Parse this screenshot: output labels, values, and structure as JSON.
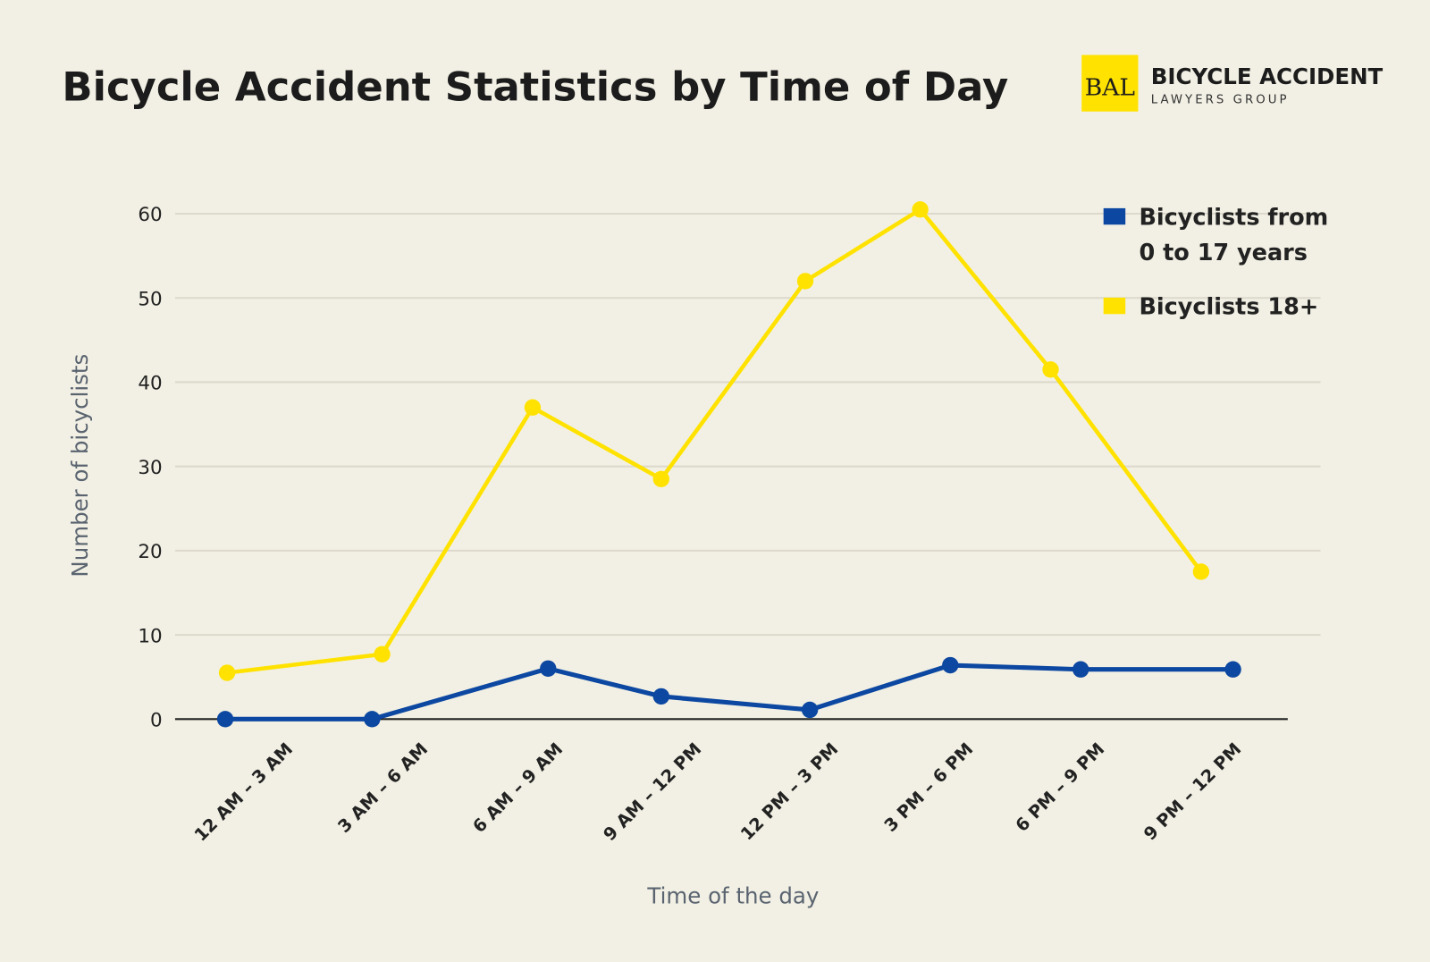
{
  "brand": {
    "logo_monogram": "BAL",
    "name_line1": "Bicycle Accident",
    "name_line2": "Lawyers Group",
    "logo_color": "#ffe200"
  },
  "chart_data": {
    "type": "line",
    "title": "Bicycle Accident Statistics by Time of Day",
    "xlabel": "Time of the day",
    "ylabel": "Number of bicyclists",
    "categories": [
      "12 AM – 3 AM",
      "3 AM – 6 AM",
      "6 AM – 9 AM",
      "9 AM – 12 PM",
      "12 PM – 3 PM",
      "3 PM – 6 PM",
      "6 PM – 9 PM",
      "9 PM – 12 PM"
    ],
    "yticks": [
      "0",
      "10",
      "20",
      "30",
      "40",
      "50",
      "60"
    ],
    "ylim": [
      0,
      60
    ],
    "grid": true,
    "legend_position": "top-right",
    "series": [
      {
        "name": "Bicyclists from 0 to 17 years",
        "name_line1": "Bicyclists from",
        "name_line2": "0 to 17 years",
        "color": "#0c47a1",
        "values": [
          0,
          0,
          6,
          2.7,
          1.1,
          6.4,
          5.9,
          5.9
        ]
      },
      {
        "name": "Bicyclists 18+",
        "color": "#ffe200",
        "values": [
          5.5,
          7.7,
          37,
          28.5,
          52,
          60.5,
          41.5,
          17.5
        ]
      }
    ]
  }
}
